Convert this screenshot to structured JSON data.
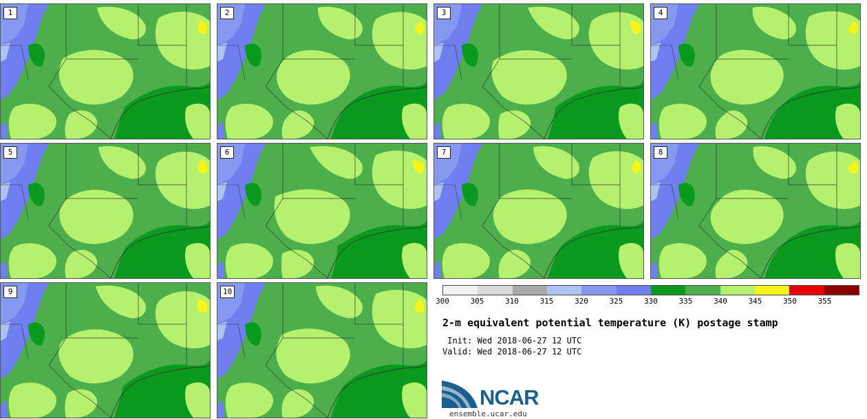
{
  "panels": [
    {
      "number": "1"
    },
    {
      "number": "2"
    },
    {
      "number": "3"
    },
    {
      "number": "4"
    },
    {
      "number": "5"
    },
    {
      "number": "6"
    },
    {
      "number": "7"
    },
    {
      "number": "8"
    },
    {
      "number": "9"
    },
    {
      "number": "10"
    }
  ],
  "colorbar": {
    "colors": [
      "#f2f2f2",
      "#d9d9d9",
      "#a9a9a9",
      "#aec3f5",
      "#8599f0",
      "#6f7ff0",
      "#0a9a1e",
      "#4caf4c",
      "#b5f06e",
      "#f5f51a",
      "#e60000",
      "#8b0000"
    ],
    "tick_labels": [
      "300",
      "305",
      "310",
      "315",
      "320",
      "325",
      "330",
      "335",
      "340",
      "345",
      "350",
      "355"
    ]
  },
  "title": "2-m equivalent potential temperature (K) postage stamp",
  "init_line": " Init: Wed 2018-06-27 12 UTC",
  "valid_line": "Valid: Wed 2018-06-27 12 UTC",
  "logo": {
    "text": "NCAR",
    "url": "ensemble.ucar.edu",
    "color": "#1b5f8f"
  },
  "map_colors": {
    "cold": "#6f7ff0",
    "cool": "#8599f0",
    "pale": "#aec3f5",
    "mid": "#4caf4c",
    "dark": "#0a9a1e",
    "light": "#b5f06e",
    "warm": "#f5f51a",
    "border": "#333333"
  }
}
